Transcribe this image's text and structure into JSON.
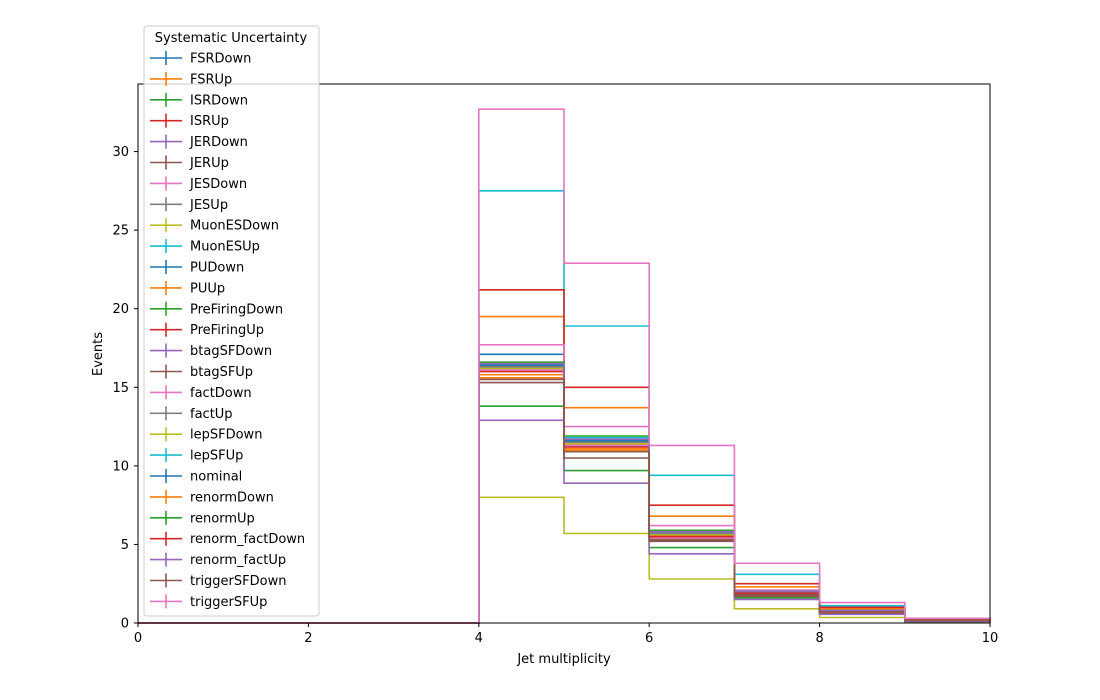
{
  "chart_data": {
    "type": "step",
    "xlabel": "Jet multiplicity",
    "ylabel": "Events",
    "xlim": [
      0,
      10
    ],
    "ylim": [
      0,
      34.3
    ],
    "xticks": [
      "0",
      "2",
      "4",
      "6",
      "8",
      "10"
    ],
    "yticks": [
      "0",
      "5",
      "10",
      "15",
      "20",
      "25",
      "30"
    ],
    "grid": false,
    "legend": {
      "title": "Systematic Uncertainty",
      "position": "upper-left"
    },
    "bin_edges": [
      0,
      1,
      2,
      3,
      4,
      5,
      6,
      7,
      8,
      9,
      10
    ],
    "series": [
      {
        "name": "FSRDown",
        "color": "#1f77b4",
        "values": [
          0,
          0,
          0,
          0,
          17.1,
          11.3,
          5.5,
          1.8,
          0.7,
          0.15
        ]
      },
      {
        "name": "FSRUp",
        "color": "#ff7f0e",
        "values": [
          0,
          0,
          0,
          0,
          15.6,
          11.0,
          5.4,
          1.8,
          0.7,
          0.15
        ]
      },
      {
        "name": "ISRDown",
        "color": "#2ca02c",
        "values": [
          0,
          0,
          0,
          0,
          16.3,
          11.5,
          5.6,
          1.9,
          0.7,
          0.15
        ]
      },
      {
        "name": "ISRUp",
        "color": "#d62728",
        "values": [
          0,
          0,
          0,
          0,
          16.2,
          11.4,
          5.6,
          1.9,
          0.7,
          0.15
        ]
      },
      {
        "name": "JERDown",
        "color": "#9467bd",
        "values": [
          0,
          0,
          0,
          0,
          16.2,
          11.3,
          5.5,
          1.9,
          0.7,
          0.15
        ]
      },
      {
        "name": "JERUp",
        "color": "#8c564b",
        "values": [
          0,
          0,
          0,
          0,
          16.3,
          11.4,
          5.5,
          1.9,
          0.7,
          0.15
        ]
      },
      {
        "name": "JESDown",
        "color": "#e377c2",
        "values": [
          0,
          0,
          0,
          0,
          16.1,
          11.3,
          5.4,
          1.8,
          0.7,
          0.15
        ]
      },
      {
        "name": "JESUp",
        "color": "#7f7f7f",
        "values": [
          0,
          0,
          0,
          0,
          16.4,
          11.6,
          5.7,
          2.0,
          0.8,
          0.15
        ]
      },
      {
        "name": "MuonESDown",
        "color": "#bcbd22",
        "values": [
          0,
          0,
          0,
          0,
          8.0,
          5.7,
          2.8,
          0.9,
          0.35,
          0.05
        ]
      },
      {
        "name": "MuonESUp",
        "color": "#17becf",
        "values": [
          0,
          0,
          0,
          0,
          27.5,
          18.9,
          9.4,
          3.1,
          1.1,
          0.25
        ]
      },
      {
        "name": "PUDown",
        "color": "#1f77b4",
        "values": [
          0,
          0,
          0,
          0,
          16.4,
          11.7,
          5.8,
          2.0,
          0.8,
          0.15
        ]
      },
      {
        "name": "PUUp",
        "color": "#ff7f0e",
        "values": [
          0,
          0,
          0,
          0,
          19.5,
          13.7,
          6.8,
          2.3,
          0.9,
          0.2
        ]
      },
      {
        "name": "PreFiringDown",
        "color": "#2ca02c",
        "values": [
          0,
          0,
          0,
          0,
          13.8,
          9.7,
          4.8,
          1.6,
          0.6,
          0.1
        ]
      },
      {
        "name": "PreFiringUp",
        "color": "#d62728",
        "values": [
          0,
          0,
          0,
          0,
          21.2,
          15.0,
          7.5,
          2.5,
          1.0,
          0.2
        ]
      },
      {
        "name": "btagSFDown",
        "color": "#9467bd",
        "values": [
          0,
          0,
          0,
          0,
          12.9,
          8.9,
          4.4,
          1.5,
          0.55,
          0.1
        ]
      },
      {
        "name": "btagSFUp",
        "color": "#8c564b",
        "values": [
          0,
          0,
          0,
          0,
          15.3,
          10.5,
          5.2,
          1.7,
          0.65,
          0.15
        ]
      },
      {
        "name": "factDown",
        "color": "#e377c2",
        "values": [
          0,
          0,
          0,
          0,
          17.7,
          12.5,
          6.2,
          2.1,
          0.8,
          0.15
        ]
      },
      {
        "name": "factUp",
        "color": "#7f7f7f",
        "values": [
          0,
          0,
          0,
          0,
          16.3,
          11.5,
          5.7,
          1.9,
          0.7,
          0.15
        ]
      },
      {
        "name": "lepSFDown",
        "color": "#bcbd22",
        "values": [
          0,
          0,
          0,
          0,
          16.2,
          11.4,
          5.6,
          1.9,
          0.7,
          0.15
        ]
      },
      {
        "name": "lepSFUp",
        "color": "#17becf",
        "values": [
          0,
          0,
          0,
          0,
          16.5,
          11.8,
          5.9,
          2.0,
          0.8,
          0.15
        ]
      },
      {
        "name": "nominal",
        "color": "#1f77b4",
        "values": [
          0,
          0,
          0,
          0,
          16.4,
          11.6,
          5.8,
          2.0,
          0.8,
          0.15
        ]
      },
      {
        "name": "renormDown",
        "color": "#ff7f0e",
        "values": [
          0,
          0,
          0,
          0,
          15.8,
          11.1,
          5.5,
          1.9,
          0.7,
          0.15
        ]
      },
      {
        "name": "renormUp",
        "color": "#2ca02c",
        "values": [
          0,
          0,
          0,
          0,
          16.6,
          11.9,
          5.9,
          2.0,
          0.8,
          0.15
        ]
      },
      {
        "name": "renorm_factDown",
        "color": "#d62728",
        "values": [
          0,
          0,
          0,
          0,
          16.0,
          11.2,
          5.5,
          1.9,
          0.7,
          0.15
        ]
      },
      {
        "name": "renorm_factUp",
        "color": "#9467bd",
        "values": [
          0,
          0,
          0,
          0,
          16.5,
          11.7,
          5.8,
          2.0,
          0.8,
          0.15
        ]
      },
      {
        "name": "triggerSFDown",
        "color": "#8c564b",
        "values": [
          0,
          0,
          0,
          0,
          15.5,
          10.9,
          5.3,
          1.8,
          0.7,
          0.15
        ]
      },
      {
        "name": "triggerSFUp",
        "color": "#e377c2",
        "values": [
          0,
          0,
          0,
          0,
          32.7,
          22.9,
          11.3,
          3.8,
          1.3,
          0.3
        ]
      }
    ]
  }
}
